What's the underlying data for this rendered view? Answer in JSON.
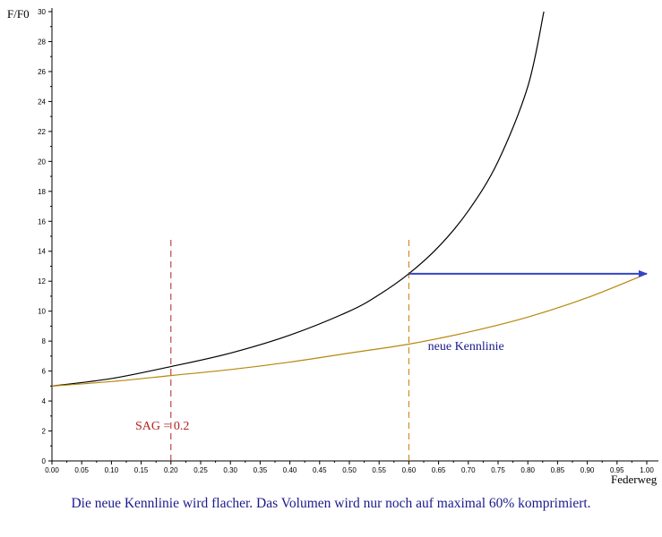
{
  "chart_data": {
    "type": "line",
    "xlabel": "Federweg",
    "ylabel": "F/F0",
    "xlim": [
      0,
      1
    ],
    "ylim": [
      0,
      30
    ],
    "x_ticks": [
      "0.00",
      "0.05",
      "0.10",
      "0.15",
      "0.20",
      "0.25",
      "0.30",
      "0.35",
      "0.40",
      "0.45",
      "0.50",
      "0.55",
      "0.60",
      "0.65",
      "0.70",
      "0.75",
      "0.80",
      "0.85",
      "0.90",
      "0.95",
      "1.00"
    ],
    "y_ticks": [
      "0",
      "2",
      "4",
      "6",
      "8",
      "10",
      "12",
      "14",
      "16",
      "18",
      "20",
      "22",
      "24",
      "26",
      "28",
      "30"
    ],
    "grid": false,
    "series": [
      {
        "color": "#000000",
        "points": [
          [
            0.0,
            5.0
          ],
          [
            0.1,
            5.5
          ],
          [
            0.2,
            6.3
          ],
          [
            0.3,
            7.2
          ],
          [
            0.4,
            8.4
          ],
          [
            0.5,
            10.0
          ],
          [
            0.55,
            11.1
          ],
          [
            0.6,
            12.5
          ],
          [
            0.65,
            14.3
          ],
          [
            0.7,
            16.7
          ],
          [
            0.75,
            20.0
          ],
          [
            0.8,
            25.0
          ],
          [
            0.827,
            30.0
          ]
        ]
      },
      {
        "name": "neue Kennlinie",
        "color": "#b8860b",
        "points": [
          [
            0.0,
            5.0
          ],
          [
            0.1,
            5.3
          ],
          [
            0.2,
            5.7
          ],
          [
            0.3,
            6.1
          ],
          [
            0.4,
            6.6
          ],
          [
            0.5,
            7.2
          ],
          [
            0.6,
            7.8
          ],
          [
            0.7,
            8.6
          ],
          [
            0.8,
            9.6
          ],
          [
            0.9,
            10.9
          ],
          [
            1.0,
            12.5
          ]
        ]
      }
    ],
    "vlines": [
      {
        "x": 0.2,
        "y_to": 15,
        "color": "#b22222"
      },
      {
        "x": 0.6,
        "y_to": 15,
        "color": "#cc7a00"
      }
    ],
    "arrow": {
      "from": [
        0.6,
        12.5
      ],
      "to": [
        1.0,
        12.5
      ],
      "color": "#3344cc"
    },
    "annotations": [
      {
        "text": "SAG = 0.2",
        "x": 0.14,
        "y": 2.1,
        "color": "#b22222"
      },
      {
        "text": "neue Kennlinie",
        "x": 0.632,
        "y": 7.4,
        "color": "#1a1a8c"
      }
    ]
  },
  "caption": "Die neue Kennlinie wird flacher. Das Volumen wird nur noch auf maximal 60% komprimiert."
}
